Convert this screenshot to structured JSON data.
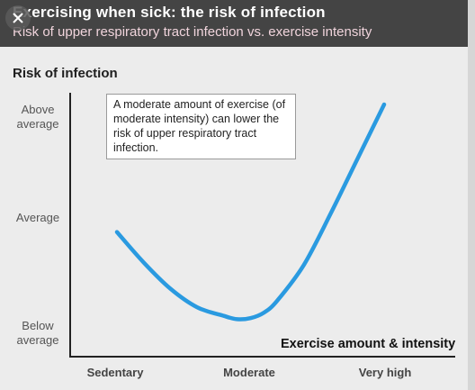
{
  "header": {
    "title": "Exercising when sick: the risk of infection",
    "subtitle": "Risk of upper respiratory tract infection vs. exercise intensity"
  },
  "icons": {
    "close": "close-icon"
  },
  "colors": {
    "curve": "#2a9ae0",
    "header_bg": "#444444",
    "background": "#ececec"
  },
  "chart_data": {
    "type": "line",
    "title": "Risk of infection",
    "xlabel": "Exercise amount & intensity",
    "ylabel": "Risk of infection",
    "x_categories": [
      "Sedentary",
      "Moderate",
      "Very high"
    ],
    "y_categories": [
      "Below average",
      "Average",
      "Above average"
    ],
    "xlim": [
      0,
      2
    ],
    "ylim": [
      0,
      2
    ],
    "series": [
      {
        "x": [
          0,
          0.2,
          0.4,
          0.6,
          0.8,
          0.9,
          1.0,
          1.1,
          1.2,
          1.4,
          1.6,
          1.8,
          2.0
        ],
        "y": [
          0.83,
          0.55,
          0.31,
          0.14,
          0.06,
          0.03,
          0.04,
          0.09,
          0.2,
          0.53,
          1.0,
          1.5,
          2.0
        ]
      }
    ],
    "annotations": [
      "A moderate amount of exercise (of moderate intensity) can lower the risk of upper respiratory tract infection."
    ],
    "grid": false,
    "legend": "none"
  }
}
